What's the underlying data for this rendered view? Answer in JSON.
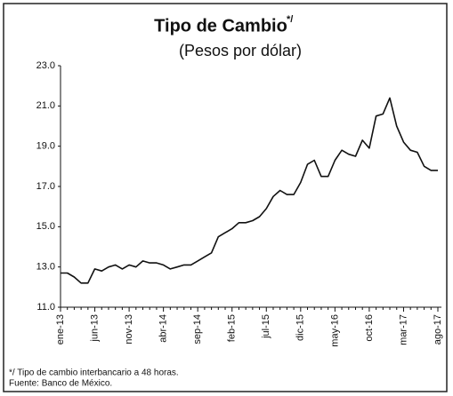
{
  "chart_data": {
    "type": "line",
    "title": "Tipo de Cambio",
    "title_superscript": "*/",
    "subtitle": "(Pesos por dólar)",
    "footnotes": [
      "*/ Tipo de cambio interbancario a 48 horas.",
      "Fuente: Banco de México."
    ],
    "categories": [
      "ene-13",
      null,
      null,
      null,
      null,
      "jun-13",
      null,
      null,
      null,
      null,
      "nov-13",
      null,
      null,
      null,
      null,
      "abr-14",
      null,
      null,
      null,
      null,
      "sep-14",
      null,
      null,
      null,
      null,
      "feb-15",
      null,
      null,
      null,
      null,
      "jul-15",
      null,
      null,
      null,
      null,
      "dic-15",
      null,
      null,
      null,
      null,
      "may-16",
      null,
      null,
      null,
      null,
      "oct-16",
      null,
      null,
      null,
      null,
      "mar-17",
      null,
      null,
      null,
      null,
      "ago-17"
    ],
    "values": [
      12.7,
      12.7,
      12.5,
      12.2,
      12.2,
      12.9,
      12.8,
      13.0,
      13.1,
      12.9,
      13.1,
      13.0,
      13.3,
      13.2,
      13.2,
      13.1,
      12.9,
      13.0,
      13.1,
      13.1,
      13.3,
      13.5,
      13.7,
      14.5,
      14.7,
      14.9,
      15.2,
      15.2,
      15.3,
      15.5,
      15.9,
      16.5,
      16.8,
      16.6,
      16.6,
      17.2,
      18.1,
      18.3,
      17.5,
      17.5,
      18.3,
      18.8,
      18.6,
      18.5,
      19.3,
      18.9,
      20.5,
      20.6,
      21.4,
      20.0,
      19.2,
      18.8,
      18.7,
      18.0,
      17.8,
      17.8
    ],
    "color": "#111111",
    "ylim": [
      11,
      23
    ],
    "yticks": [
      {
        "value": 11,
        "label": "11.0"
      },
      {
        "value": 13,
        "label": "13.0"
      },
      {
        "value": 15,
        "label": "15.0"
      },
      {
        "value": 17,
        "label": "17.0"
      },
      {
        "value": 19,
        "label": "19.0"
      },
      {
        "value": 21,
        "label": "21.0"
      },
      {
        "value": 23,
        "label": "23.0"
      }
    ],
    "grid": false
  }
}
